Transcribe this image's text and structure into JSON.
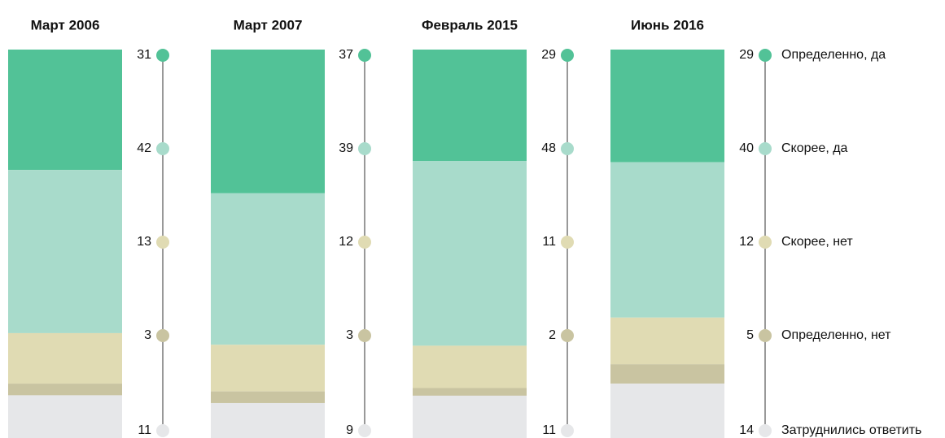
{
  "chart_data": {
    "type": "bar",
    "stacked": true,
    "categories": [
      "Март 2006",
      "Март 2007",
      "Февраль 2015",
      "Июнь 2016"
    ],
    "series": [
      {
        "name": "Определенно, да",
        "color": "#52c297",
        "values": [
          31,
          37,
          29,
          29
        ]
      },
      {
        "name": "Скорее, да",
        "color": "#a8dbcb",
        "values": [
          42,
          39,
          48,
          40
        ]
      },
      {
        "name": "Скорее, нет",
        "color": "#e0dbb3",
        "values": [
          13,
          12,
          11,
          12
        ]
      },
      {
        "name": "Определенно, нет",
        "color": "#c9c4a1",
        "values": [
          3,
          3,
          2,
          5
        ]
      },
      {
        "name": "Затруднились ответить",
        "color": "#e6e7e9",
        "values": [
          11,
          9,
          11,
          14
        ]
      }
    ]
  }
}
